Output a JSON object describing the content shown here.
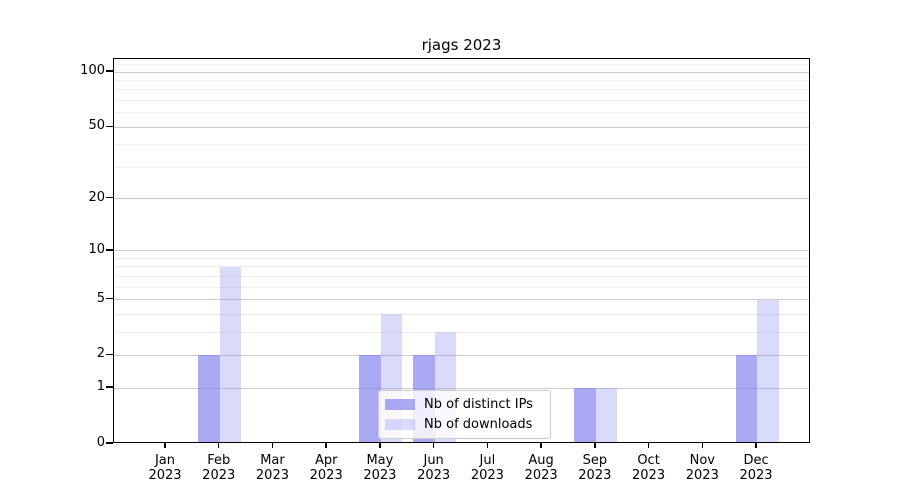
{
  "chart_data": {
    "type": "bar",
    "title": "rjags 2023",
    "categories": [
      "Jan",
      "Feb",
      "Mar",
      "Apr",
      "May",
      "Jun",
      "Jul",
      "Aug",
      "Sep",
      "Oct",
      "Nov",
      "Dec"
    ],
    "category_year": "2023",
    "series": [
      {
        "name": "Nb of distinct IPs",
        "color": "#7777ee",
        "alpha": 0.63,
        "color_on_white": "#a9a9f4",
        "values": [
          0,
          2,
          0,
          0,
          2,
          2,
          0,
          0,
          1,
          0,
          0,
          2
        ]
      },
      {
        "name": "Nb of downloads",
        "color": "#7777ee",
        "alpha": 0.27,
        "color_on_white": "#dbdbf7",
        "values": [
          0,
          8,
          0,
          0,
          4,
          3,
          0,
          0,
          1,
          0,
          0,
          5
        ]
      }
    ],
    "xlabel": "",
    "ylabel": "",
    "yscale": "log1p",
    "ylim": [
      0,
      118
    ],
    "yticks": [
      0,
      1,
      2,
      5,
      10,
      20,
      50,
      100
    ],
    "yticks_minor": [
      3,
      4,
      6,
      7,
      8,
      9,
      30,
      40,
      60,
      70,
      80,
      90,
      110
    ],
    "grid": true,
    "legend_position": "lower center"
  },
  "colors": {
    "axis": "#000000",
    "grid_major": "#cccccc",
    "grid_minor": "#eeeeee",
    "legend_border": "#cccccc",
    "legend_background": "#ffffff"
  }
}
